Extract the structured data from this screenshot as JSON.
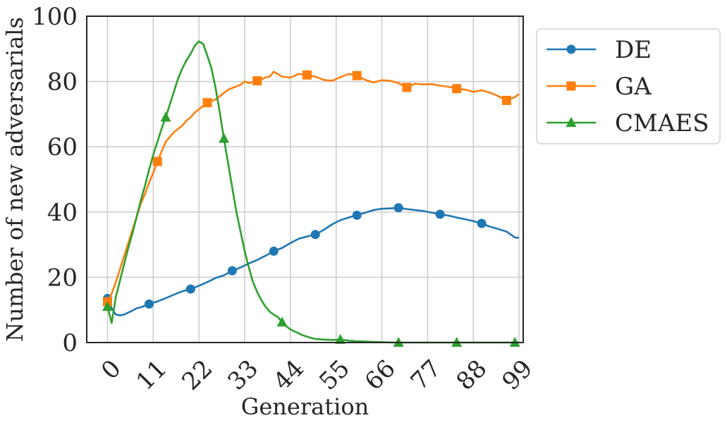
{
  "chart_data": {
    "type": "line",
    "xlabel": "Generation",
    "ylabel": "Number of new adversarials",
    "xlim": [
      -5,
      100
    ],
    "ylim": [
      0,
      100
    ],
    "xticks": [
      0,
      11,
      22,
      33,
      44,
      55,
      66,
      77,
      88,
      99
    ],
    "xtick_labels": [
      "0",
      "11",
      "22",
      "33",
      "44",
      "55",
      "66",
      "77",
      "88",
      "99"
    ],
    "yticks": [
      0,
      20,
      40,
      60,
      80,
      100
    ],
    "ytick_labels": [
      "0",
      "20",
      "40",
      "60",
      "80",
      "100"
    ],
    "grid": true,
    "legend_position": "outside-right-top",
    "series": [
      {
        "name": "DE",
        "color": "#1f77b4",
        "marker": "circle",
        "marker_x": [
          0,
          10,
          20,
          30,
          40,
          50,
          60,
          70,
          80,
          90
        ],
        "x": [
          0,
          1,
          2,
          3,
          4,
          5,
          6,
          7,
          8,
          9,
          10,
          12,
          14,
          16,
          18,
          20,
          22,
          24,
          26,
          28,
          30,
          32,
          34,
          36,
          38,
          40,
          42,
          44,
          46,
          48,
          50,
          52,
          54,
          56,
          58,
          60,
          62,
          64,
          66,
          68,
          70,
          72,
          74,
          76,
          78,
          80,
          82,
          84,
          86,
          88,
          90,
          92,
          94,
          96,
          98,
          99
        ],
        "y": [
          13.5,
          10.5,
          8.6,
          8.3,
          8.6,
          9.2,
          9.8,
          10.5,
          10.8,
          11.3,
          11.8,
          12.6,
          13.6,
          14.7,
          15.7,
          16.4,
          17.4,
          18.5,
          19.8,
          20.6,
          22,
          23,
          24.2,
          25.3,
          26.6,
          28,
          29,
          30.5,
          31.8,
          32.5,
          33.1,
          34.5,
          36.2,
          37.5,
          38.3,
          39,
          39.8,
          40.6,
          41,
          41.1,
          41.3,
          40.9,
          40.6,
          40.3,
          39.8,
          39.3,
          38.9,
          38.3,
          37.8,
          37.2,
          36.5,
          35.5,
          34.8,
          34,
          32.2,
          32.1
        ]
      },
      {
        "name": "GA",
        "color": "#ff7f0e",
        "marker": "square",
        "marker_x": [
          0,
          12,
          24,
          36,
          48,
          60,
          72,
          84,
          96
        ],
        "x": [
          0,
          1,
          2,
          3,
          4,
          5,
          6,
          7,
          8,
          9,
          10,
          11,
          12,
          13,
          14,
          15,
          16,
          17,
          18,
          19,
          20,
          21,
          22,
          23,
          24,
          25,
          26,
          27,
          28,
          29,
          30,
          31,
          32,
          33,
          34,
          35,
          36,
          37,
          38,
          39,
          40,
          42,
          44,
          46,
          48,
          50,
          52,
          54,
          56,
          58,
          60,
          62,
          64,
          66,
          68,
          70,
          72,
          74,
          76,
          78,
          80,
          82,
          84,
          86,
          88,
          90,
          92,
          94,
          96,
          98,
          99
        ],
        "y": [
          12.5,
          15,
          18.5,
          22.5,
          26.5,
          30.5,
          34.5,
          38.5,
          42.5,
          45.5,
          49,
          52,
          55.5,
          58.5,
          61.5,
          63,
          64.5,
          65.5,
          66.5,
          68,
          69,
          70.5,
          71.5,
          72.5,
          73.5,
          74,
          74.5,
          75.5,
          76.5,
          77.5,
          78,
          78.5,
          79,
          80,
          79.5,
          79.8,
          80.2,
          80.6,
          81.2,
          81.5,
          83,
          81.5,
          81.2,
          82.3,
          82,
          81.5,
          80.5,
          80.2,
          81.3,
          82.3,
          81.8,
          80.5,
          79.7,
          80.4,
          80.2,
          79.5,
          78.2,
          79.3,
          79.1,
          79.2,
          78.7,
          78.4,
          77.8,
          77.5,
          76.8,
          77.3,
          76.6,
          75.5,
          74.2,
          75.2,
          76.2
        ]
      },
      {
        "name": "CMAES",
        "color": "#2ca02c",
        "marker": "triangle",
        "marker_x": [
          0,
          14,
          28,
          42,
          56,
          70,
          84,
          98
        ],
        "x": [
          0,
          1,
          2,
          3,
          4,
          5,
          6,
          7,
          8,
          9,
          10,
          11,
          12,
          13,
          14,
          15,
          16,
          17,
          18,
          19,
          20,
          21,
          22,
          23,
          24,
          25,
          26,
          27,
          28,
          29,
          30,
          31,
          32,
          33,
          34,
          35,
          36,
          37,
          38,
          39,
          40,
          41,
          42,
          43,
          44,
          45,
          46,
          47,
          48,
          49,
          50,
          52,
          54,
          56,
          58,
          60,
          62,
          64,
          66,
          68,
          70,
          72,
          76,
          80,
          84,
          88,
          92,
          96,
          98,
          99
        ],
        "y": [
          11,
          6,
          14,
          19,
          24,
          29,
          33.5,
          38.5,
          43.5,
          48,
          53,
          57.5,
          61.5,
          65.5,
          69,
          73,
          77,
          81,
          84,
          86.5,
          88.5,
          91,
          92.3,
          91.5,
          88,
          84,
          78,
          70.5,
          62.5,
          55,
          47.5,
          40,
          34,
          28,
          23,
          18.5,
          15.5,
          13,
          11,
          9.5,
          8.5,
          7.8,
          6.2,
          5,
          4,
          3.4,
          2.8,
          2.2,
          1.8,
          1.4,
          1.1,
          0.9,
          0.8,
          0.9,
          0.6,
          0.4,
          0.3,
          0.2,
          0.1,
          0.05,
          0,
          0,
          0,
          0,
          0,
          0,
          0,
          0,
          0,
          0
        ]
      }
    ]
  }
}
